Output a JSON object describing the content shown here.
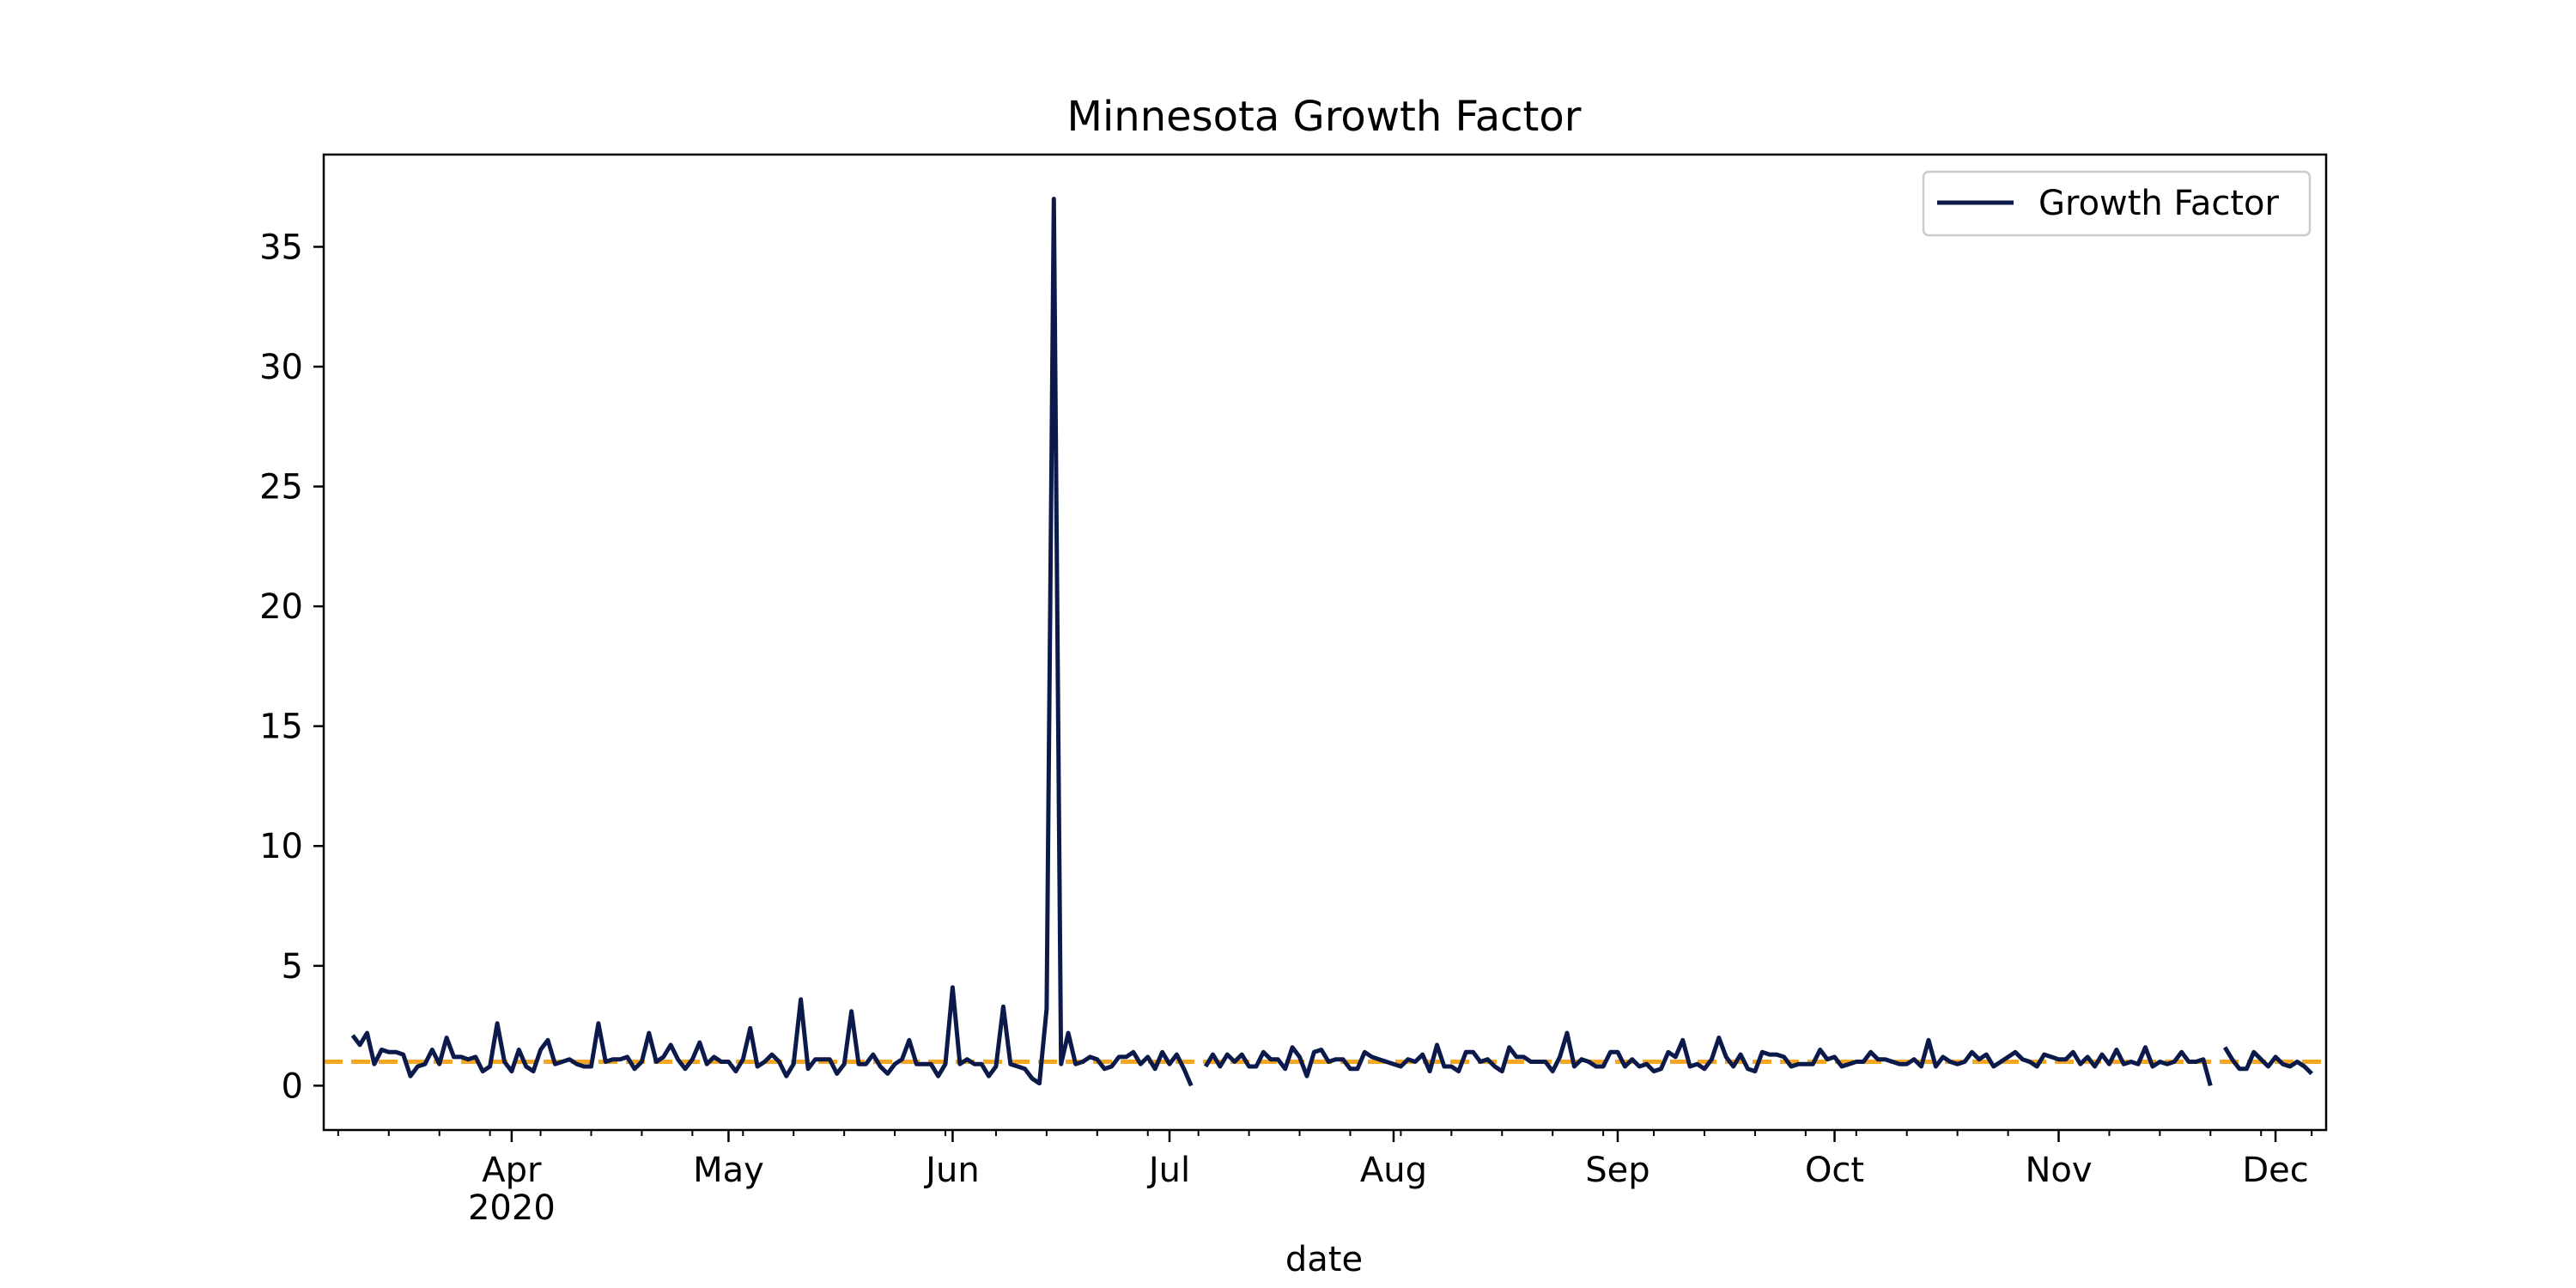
{
  "chart_data": {
    "type": "line",
    "title": "Minnesota Growth Factor",
    "xlabel": "date",
    "ylabel": "",
    "x_range": [
      "2020-03-06",
      "2020-12-08"
    ],
    "ylim": [
      -1.85,
      38.85
    ],
    "yticks": [
      0,
      5,
      10,
      15,
      20,
      25,
      30,
      35
    ],
    "xticks": [
      {
        "date": "2020-04-01",
        "label": "Apr",
        "sublabel": "2020"
      },
      {
        "date": "2020-05-01",
        "label": "May"
      },
      {
        "date": "2020-06-01",
        "label": "Jun"
      },
      {
        "date": "2020-07-01",
        "label": "Jul"
      },
      {
        "date": "2020-08-01",
        "label": "Aug"
      },
      {
        "date": "2020-09-01",
        "label": "Sep"
      },
      {
        "date": "2020-10-01",
        "label": "Oct"
      },
      {
        "date": "2020-11-01",
        "label": "Nov"
      },
      {
        "date": "2020-12-01",
        "label": "Dec"
      }
    ],
    "grid": false,
    "legend": {
      "position": "top-right",
      "entries": [
        "Growth Factor"
      ]
    },
    "reference_line": {
      "y": 1,
      "style": "dashed",
      "color": "#f5a623"
    },
    "series": [
      {
        "name": "Growth Factor",
        "color": "#0b1a4a",
        "points": [
          [
            "2020-03-10",
            2.1
          ],
          [
            "2020-03-11",
            1.7
          ],
          [
            "2020-03-12",
            2.2
          ],
          [
            "2020-03-13",
            0.9
          ],
          [
            "2020-03-14",
            1.5
          ],
          [
            "2020-03-15",
            1.4
          ],
          [
            "2020-03-16",
            1.4
          ],
          [
            "2020-03-17",
            1.3
          ],
          [
            "2020-03-18",
            0.4
          ],
          [
            "2020-03-19",
            0.8
          ],
          [
            "2020-03-20",
            0.9
          ],
          [
            "2020-03-21",
            1.5
          ],
          [
            "2020-03-22",
            0.9
          ],
          [
            "2020-03-23",
            2.0
          ],
          [
            "2020-03-24",
            1.2
          ],
          [
            "2020-03-25",
            1.2
          ],
          [
            "2020-03-26",
            1.1
          ],
          [
            "2020-03-27",
            1.2
          ],
          [
            "2020-03-28",
            0.6
          ],
          [
            "2020-03-29",
            0.8
          ],
          [
            "2020-03-30",
            2.6
          ],
          [
            "2020-03-31",
            1.0
          ],
          [
            "2020-04-01",
            0.6
          ],
          [
            "2020-04-02",
            1.5
          ],
          [
            "2020-04-03",
            0.8
          ],
          [
            "2020-04-04",
            0.6
          ],
          [
            "2020-04-05",
            1.5
          ],
          [
            "2020-04-06",
            1.9
          ],
          [
            "2020-04-07",
            0.9
          ],
          [
            "2020-04-08",
            1.0
          ],
          [
            "2020-04-09",
            1.1
          ],
          [
            "2020-04-10",
            0.9
          ],
          [
            "2020-04-11",
            0.8
          ],
          [
            "2020-04-12",
            0.8
          ],
          [
            "2020-04-13",
            2.6
          ],
          [
            "2020-04-14",
            1.0
          ],
          [
            "2020-04-15",
            1.1
          ],
          [
            "2020-04-16",
            1.1
          ],
          [
            "2020-04-17",
            1.2
          ],
          [
            "2020-04-18",
            0.7
          ],
          [
            "2020-04-19",
            1.0
          ],
          [
            "2020-04-20",
            2.2
          ],
          [
            "2020-04-21",
            1.0
          ],
          [
            "2020-04-22",
            1.2
          ],
          [
            "2020-04-23",
            1.7
          ],
          [
            "2020-04-24",
            1.1
          ],
          [
            "2020-04-25",
            0.7
          ],
          [
            "2020-04-26",
            1.1
          ],
          [
            "2020-04-27",
            1.8
          ],
          [
            "2020-04-28",
            0.9
          ],
          [
            "2020-04-29",
            1.2
          ],
          [
            "2020-04-30",
            1.0
          ],
          [
            "2020-05-01",
            1.0
          ],
          [
            "2020-05-02",
            0.6
          ],
          [
            "2020-05-03",
            1.1
          ],
          [
            "2020-05-04",
            2.4
          ],
          [
            "2020-05-05",
            0.8
          ],
          [
            "2020-05-06",
            1.0
          ],
          [
            "2020-05-07",
            1.3
          ],
          [
            "2020-05-08",
            1.0
          ],
          [
            "2020-05-09",
            0.4
          ],
          [
            "2020-05-10",
            0.9
          ],
          [
            "2020-05-11",
            3.6
          ],
          [
            "2020-05-12",
            0.7
          ],
          [
            "2020-05-13",
            1.1
          ],
          [
            "2020-05-14",
            1.1
          ],
          [
            "2020-05-15",
            1.1
          ],
          [
            "2020-05-16",
            0.5
          ],
          [
            "2020-05-17",
            0.9
          ],
          [
            "2020-05-18",
            3.1
          ],
          [
            "2020-05-19",
            0.9
          ],
          [
            "2020-05-20",
            0.9
          ],
          [
            "2020-05-21",
            1.3
          ],
          [
            "2020-05-22",
            0.8
          ],
          [
            "2020-05-23",
            0.5
          ],
          [
            "2020-05-24",
            0.9
          ],
          [
            "2020-05-25",
            1.1
          ],
          [
            "2020-05-26",
            1.9
          ],
          [
            "2020-05-27",
            0.9
          ],
          [
            "2020-05-28",
            0.9
          ],
          [
            "2020-05-29",
            0.9
          ],
          [
            "2020-05-30",
            0.4
          ],
          [
            "2020-05-31",
            0.9
          ],
          [
            "2020-06-01",
            4.1
          ],
          [
            "2020-06-02",
            0.9
          ],
          [
            "2020-06-03",
            1.1
          ],
          [
            "2020-06-04",
            0.9
          ],
          [
            "2020-06-05",
            0.9
          ],
          [
            "2020-06-06",
            0.4
          ],
          [
            "2020-06-07",
            0.8
          ],
          [
            "2020-06-08",
            3.3
          ],
          [
            "2020-06-09",
            0.9
          ],
          [
            "2020-06-10",
            0.8
          ],
          [
            "2020-06-11",
            0.7
          ],
          [
            "2020-06-12",
            0.3
          ],
          [
            "2020-06-13",
            0.1
          ],
          [
            "2020-06-14",
            3.2
          ],
          [
            "2020-06-15",
            37.0
          ],
          [
            "2020-06-16",
            0.9
          ],
          [
            "2020-06-17",
            2.2
          ],
          [
            "2020-06-18",
            0.9
          ],
          [
            "2020-06-19",
            1.0
          ],
          [
            "2020-06-20",
            1.2
          ],
          [
            "2020-06-21",
            1.1
          ],
          [
            "2020-06-22",
            0.7
          ],
          [
            "2020-06-23",
            0.8
          ],
          [
            "2020-06-24",
            1.2
          ],
          [
            "2020-06-25",
            1.2
          ],
          [
            "2020-06-26",
            1.4
          ],
          [
            "2020-06-27",
            0.9
          ],
          [
            "2020-06-28",
            1.2
          ],
          [
            "2020-06-29",
            0.7
          ],
          [
            "2020-06-30",
            1.4
          ],
          [
            "2020-07-01",
            0.9
          ],
          [
            "2020-07-02",
            1.3
          ],
          [
            "2020-07-03",
            0.7
          ],
          [
            "2020-07-04",
            0.0
          ],
          [
            "2020-07-05",
            null
          ],
          [
            "2020-07-06",
            0.8
          ],
          [
            "2020-07-07",
            1.3
          ],
          [
            "2020-07-08",
            0.8
          ],
          [
            "2020-07-09",
            1.3
          ],
          [
            "2020-07-10",
            1.0
          ],
          [
            "2020-07-11",
            1.3
          ],
          [
            "2020-07-12",
            0.8
          ],
          [
            "2020-07-13",
            0.8
          ],
          [
            "2020-07-14",
            1.4
          ],
          [
            "2020-07-15",
            1.1
          ],
          [
            "2020-07-16",
            1.1
          ],
          [
            "2020-07-17",
            0.7
          ],
          [
            "2020-07-18",
            1.6
          ],
          [
            "2020-07-19",
            1.2
          ],
          [
            "2020-07-20",
            0.4
          ],
          [
            "2020-07-21",
            1.4
          ],
          [
            "2020-07-22",
            1.5
          ],
          [
            "2020-07-23",
            1.0
          ],
          [
            "2020-07-24",
            1.1
          ],
          [
            "2020-07-25",
            1.1
          ],
          [
            "2020-07-26",
            0.7
          ],
          [
            "2020-07-27",
            0.7
          ],
          [
            "2020-07-28",
            1.4
          ],
          [
            "2020-07-29",
            1.2
          ],
          [
            "2020-07-30",
            1.1
          ],
          [
            "2020-07-31",
            1.0
          ],
          [
            "2020-08-01",
            0.9
          ],
          [
            "2020-08-02",
            0.8
          ],
          [
            "2020-08-03",
            1.1
          ],
          [
            "2020-08-04",
            1.0
          ],
          [
            "2020-08-05",
            1.3
          ],
          [
            "2020-08-06",
            0.6
          ],
          [
            "2020-08-07",
            1.7
          ],
          [
            "2020-08-08",
            0.8
          ],
          [
            "2020-08-09",
            0.8
          ],
          [
            "2020-08-10",
            0.6
          ],
          [
            "2020-08-11",
            1.4
          ],
          [
            "2020-08-12",
            1.4
          ],
          [
            "2020-08-13",
            1.0
          ],
          [
            "2020-08-14",
            1.1
          ],
          [
            "2020-08-15",
            0.8
          ],
          [
            "2020-08-16",
            0.6
          ],
          [
            "2020-08-17",
            1.6
          ],
          [
            "2020-08-18",
            1.2
          ],
          [
            "2020-08-19",
            1.2
          ],
          [
            "2020-08-20",
            1.0
          ],
          [
            "2020-08-21",
            1.0
          ],
          [
            "2020-08-22",
            1.0
          ],
          [
            "2020-08-23",
            0.6
          ],
          [
            "2020-08-24",
            1.2
          ],
          [
            "2020-08-25",
            2.2
          ],
          [
            "2020-08-26",
            0.8
          ],
          [
            "2020-08-27",
            1.1
          ],
          [
            "2020-08-28",
            1.0
          ],
          [
            "2020-08-29",
            0.8
          ],
          [
            "2020-08-30",
            0.8
          ],
          [
            "2020-08-31",
            1.4
          ],
          [
            "2020-09-01",
            1.4
          ],
          [
            "2020-09-02",
            0.8
          ],
          [
            "2020-09-03",
            1.1
          ],
          [
            "2020-09-04",
            0.8
          ],
          [
            "2020-09-05",
            0.9
          ],
          [
            "2020-09-06",
            0.6
          ],
          [
            "2020-09-07",
            0.7
          ],
          [
            "2020-09-08",
            1.4
          ],
          [
            "2020-09-09",
            1.2
          ],
          [
            "2020-09-10",
            1.9
          ],
          [
            "2020-09-11",
            0.8
          ],
          [
            "2020-09-12",
            0.9
          ],
          [
            "2020-09-13",
            0.7
          ],
          [
            "2020-09-14",
            1.1
          ],
          [
            "2020-09-15",
            2.0
          ],
          [
            "2020-09-16",
            1.2
          ],
          [
            "2020-09-17",
            0.8
          ],
          [
            "2020-09-18",
            1.3
          ],
          [
            "2020-09-19",
            0.7
          ],
          [
            "2020-09-20",
            0.6
          ],
          [
            "2020-09-21",
            1.4
          ],
          [
            "2020-09-22",
            1.3
          ],
          [
            "2020-09-23",
            1.3
          ],
          [
            "2020-09-24",
            1.2
          ],
          [
            "2020-09-25",
            0.8
          ],
          [
            "2020-09-26",
            0.9
          ],
          [
            "2020-09-27",
            0.9
          ],
          [
            "2020-09-28",
            0.9
          ],
          [
            "2020-09-29",
            1.5
          ],
          [
            "2020-09-30",
            1.1
          ],
          [
            "2020-10-01",
            1.2
          ],
          [
            "2020-10-02",
            0.8
          ],
          [
            "2020-10-03",
            0.9
          ],
          [
            "2020-10-04",
            1.0
          ],
          [
            "2020-10-05",
            1.0
          ],
          [
            "2020-10-06",
            1.4
          ],
          [
            "2020-10-07",
            1.1
          ],
          [
            "2020-10-08",
            1.1
          ],
          [
            "2020-10-09",
            1.0
          ],
          [
            "2020-10-10",
            0.9
          ],
          [
            "2020-10-11",
            0.9
          ],
          [
            "2020-10-12",
            1.1
          ],
          [
            "2020-10-13",
            0.8
          ],
          [
            "2020-10-14",
            1.9
          ],
          [
            "2020-10-15",
            0.8
          ],
          [
            "2020-10-16",
            1.2
          ],
          [
            "2020-10-17",
            1.0
          ],
          [
            "2020-10-18",
            0.9
          ],
          [
            "2020-10-19",
            1.0
          ],
          [
            "2020-10-20",
            1.4
          ],
          [
            "2020-10-21",
            1.1
          ],
          [
            "2020-10-22",
            1.3
          ],
          [
            "2020-10-23",
            0.8
          ],
          [
            "2020-10-24",
            1.0
          ],
          [
            "2020-10-25",
            1.2
          ],
          [
            "2020-10-26",
            1.4
          ],
          [
            "2020-10-27",
            1.1
          ],
          [
            "2020-10-28",
            1.0
          ],
          [
            "2020-10-29",
            0.8
          ],
          [
            "2020-10-30",
            1.3
          ],
          [
            "2020-10-31",
            1.2
          ],
          [
            "2020-11-01",
            1.1
          ],
          [
            "2020-11-02",
            1.1
          ],
          [
            "2020-11-03",
            1.4
          ],
          [
            "2020-11-04",
            0.9
          ],
          [
            "2020-11-05",
            1.2
          ],
          [
            "2020-11-06",
            0.8
          ],
          [
            "2020-11-07",
            1.3
          ],
          [
            "2020-11-08",
            0.9
          ],
          [
            "2020-11-09",
            1.5
          ],
          [
            "2020-11-10",
            0.9
          ],
          [
            "2020-11-11",
            1.0
          ],
          [
            "2020-11-12",
            0.9
          ],
          [
            "2020-11-13",
            1.6
          ],
          [
            "2020-11-14",
            0.8
          ],
          [
            "2020-11-15",
            1.0
          ],
          [
            "2020-11-16",
            0.9
          ],
          [
            "2020-11-17",
            1.0
          ],
          [
            "2020-11-18",
            1.4
          ],
          [
            "2020-11-19",
            1.0
          ],
          [
            "2020-11-20",
            1.0
          ],
          [
            "2020-11-21",
            1.1
          ],
          [
            "2020-11-22",
            0.0
          ],
          [
            "2020-11-23",
            null
          ],
          [
            "2020-11-24",
            1.6
          ],
          [
            "2020-11-25",
            1.1
          ],
          [
            "2020-11-26",
            0.7
          ],
          [
            "2020-11-27",
            0.7
          ],
          [
            "2020-11-28",
            1.4
          ],
          [
            "2020-11-29",
            1.1
          ],
          [
            "2020-11-30",
            0.8
          ],
          [
            "2020-12-01",
            1.2
          ],
          [
            "2020-12-02",
            0.9
          ],
          [
            "2020-12-03",
            0.8
          ],
          [
            "2020-12-04",
            1.0
          ],
          [
            "2020-12-05",
            0.8
          ],
          [
            "2020-12-06",
            0.5
          ]
        ]
      }
    ]
  }
}
